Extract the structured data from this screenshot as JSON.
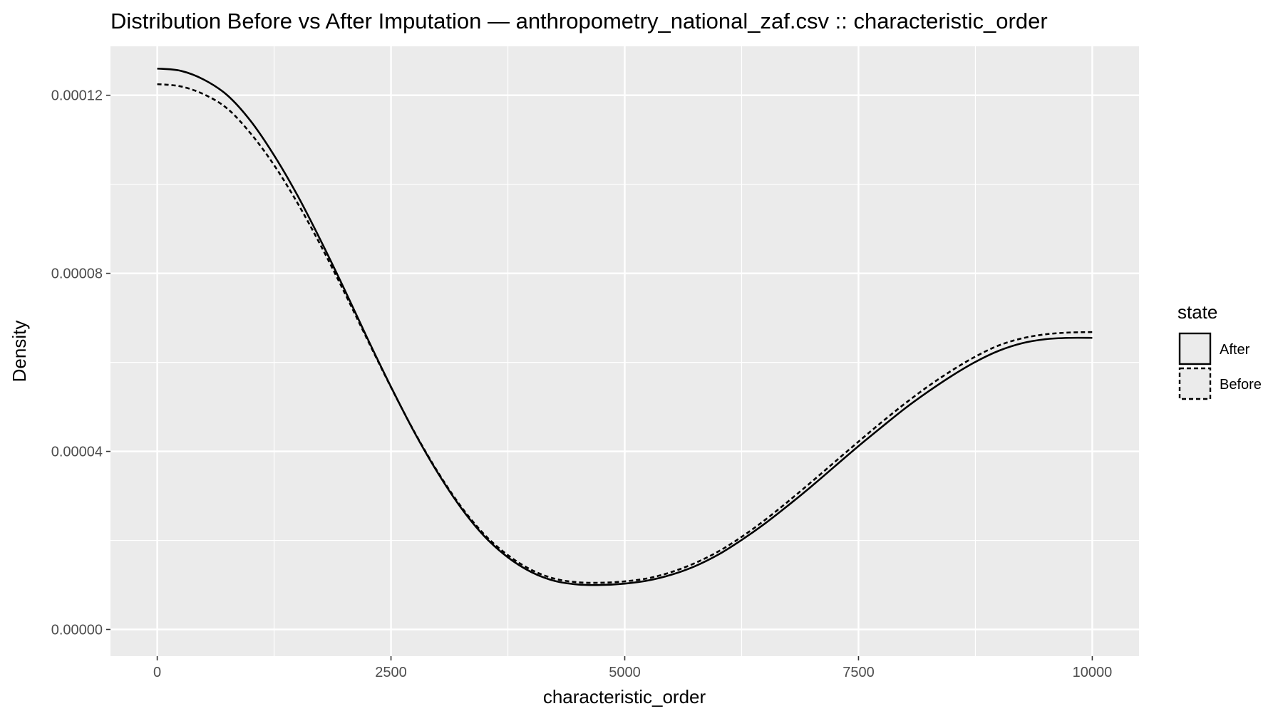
{
  "chart_data": {
    "type": "line",
    "title": "Distribution Before vs After Imputation — anthropometry_national_zaf.csv :: characteristic_order",
    "xlabel": "characteristic_order",
    "ylabel": "Density",
    "xlim": [
      -500,
      10500
    ],
    "ylim": [
      -6e-06,
      0.000131
    ],
    "x_ticks": [
      0,
      2500,
      5000,
      7500,
      10000
    ],
    "x_tick_labels": [
      "0",
      "2500",
      "5000",
      "7500",
      "10000"
    ],
    "y_ticks": [
      0,
      4e-05,
      8e-05,
      0.00012
    ],
    "y_tick_labels": [
      "0.00000",
      "0.00004",
      "0.00008",
      "0.00012"
    ],
    "grid": true,
    "background": "#ebebeb",
    "legend": {
      "title": "state",
      "placement": "right",
      "entries": [
        {
          "label": "After",
          "linetype": "solid"
        },
        {
          "label": "Before",
          "linetype": "dashed"
        }
      ]
    },
    "series": [
      {
        "name": "After",
        "linetype": "solid",
        "color": "#000000",
        "x": [
          0,
          250,
          500,
          750,
          1000,
          1250,
          1500,
          1750,
          2000,
          2250,
          2500,
          2750,
          3000,
          3250,
          3500,
          3750,
          4000,
          4250,
          4500,
          4750,
          5000,
          5250,
          5500,
          5750,
          6000,
          6250,
          6500,
          6750,
          7000,
          7250,
          7500,
          7750,
          8000,
          8250,
          8500,
          8750,
          9000,
          9250,
          9500,
          9750,
          10000
        ],
        "y": [
          0.000126,
          0.0001255,
          0.0001235,
          0.00012,
          0.0001142,
          0.0001065,
          9.75e-05,
          8.73e-05,
          7.65e-05,
          6.53e-05,
          5.45e-05,
          4.43e-05,
          3.52e-05,
          2.73e-05,
          2.09e-05,
          1.62e-05,
          1.29e-05,
          1.09e-05,
          1.01e-05,
          1e-05,
          1.03e-05,
          1.1e-05,
          1.23e-05,
          1.42e-05,
          1.68e-05,
          2.01e-05,
          2.38e-05,
          2.79e-05,
          3.22e-05,
          3.67e-05,
          4.12e-05,
          4.55e-05,
          4.97e-05,
          5.35e-05,
          5.7e-05,
          6.01e-05,
          6.26e-05,
          6.43e-05,
          6.52e-05,
          6.55e-05,
          6.55e-05
        ]
      },
      {
        "name": "Before",
        "linetype": "dashed",
        "color": "#000000",
        "x": [
          0,
          250,
          500,
          750,
          1000,
          1250,
          1500,
          1750,
          2000,
          2250,
          2500,
          2750,
          3000,
          3250,
          3500,
          3750,
          4000,
          4250,
          4500,
          4750,
          5000,
          5250,
          5500,
          5750,
          6000,
          6250,
          6500,
          6750,
          7000,
          7250,
          7500,
          7750,
          8000,
          8250,
          8500,
          8750,
          9000,
          9250,
          9500,
          9750,
          10000
        ],
        "y": [
          0.0001225,
          0.000122,
          0.0001202,
          0.000117,
          0.0001114,
          0.0001043,
          9.58e-05,
          8.62e-05,
          7.58e-05,
          6.5e-05,
          5.44e-05,
          4.44e-05,
          3.54e-05,
          2.76e-05,
          2.13e-05,
          1.67e-05,
          1.34e-05,
          1.14e-05,
          1.06e-05,
          1.05e-05,
          1.08e-05,
          1.15e-05,
          1.29e-05,
          1.49e-05,
          1.75e-05,
          2.08e-05,
          2.46e-05,
          2.88e-05,
          3.32e-05,
          3.77e-05,
          4.22e-05,
          4.66e-05,
          5.08e-05,
          5.47e-05,
          5.82e-05,
          6.13e-05,
          6.38e-05,
          6.54e-05,
          6.63e-05,
          6.67e-05,
          6.68e-05
        ]
      }
    ]
  }
}
